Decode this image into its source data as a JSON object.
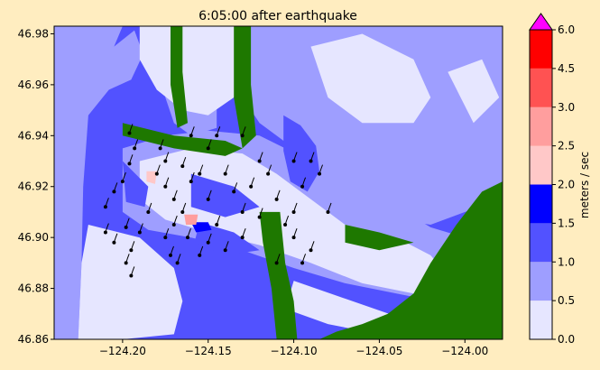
{
  "chart_data": {
    "type": "heatmap",
    "title": "6:05:00 after earthquake",
    "xlabel": "",
    "ylabel": "",
    "xlim": [
      -124.24,
      -123.978
    ],
    "ylim": [
      46.86,
      46.983
    ],
    "x_ticks": [
      -124.2,
      -124.15,
      -124.1,
      -124.05,
      -124.0
    ],
    "x_tick_labels": [
      "−124.20",
      "−124.15",
      "−124.10",
      "−124.05",
      "−124.00"
    ],
    "y_ticks": [
      46.86,
      46.88,
      46.9,
      46.92,
      46.94,
      46.96,
      46.98
    ],
    "y_tick_labels": [
      "46.86",
      "46.88",
      "46.90",
      "46.92",
      "46.94",
      "46.96",
      "46.98"
    ],
    "colorbar": {
      "label": "meters / sec",
      "ticks": [
        0.0,
        0.5,
        1.0,
        1.5,
        2.0,
        2.5,
        3.0,
        4.5,
        6.0
      ],
      "tick_labels": [
        "0.0",
        "0.5",
        "1.0",
        "1.5",
        "2.0",
        "2.5",
        "3.0",
        "4.5",
        "6.0"
      ],
      "bins": [
        {
          "from": 0.0,
          "to": 0.5,
          "color": "#E6E6FF"
        },
        {
          "from": 0.5,
          "to": 1.0,
          "color": "#9E9EFF"
        },
        {
          "from": 1.0,
          "to": 1.5,
          "color": "#5252FF"
        },
        {
          "from": 1.5,
          "to": 2.0,
          "color": "#0000FF"
        },
        {
          "from": 2.0,
          "to": 2.5,
          "color": "#FFC8C8"
        },
        {
          "from": 2.5,
          "to": 3.0,
          "color": "#FF9E9E"
        },
        {
          "from": 3.0,
          "to": 4.5,
          "color": "#FF5252"
        },
        {
          "from": 4.5,
          "to": 6.0,
          "color": "#FF0000"
        }
      ],
      "extend_max_color": "#FF00FF"
    },
    "land_color": "#1E7800",
    "speed_regions": [
      {
        "level": 0.75,
        "poly": [
          [
            -124.24,
            46.983
          ],
          [
            -124.194,
            46.983
          ],
          [
            -124.188,
            46.972
          ],
          [
            -124.195,
            46.962
          ],
          [
            -124.208,
            46.958
          ],
          [
            -124.22,
            46.948
          ],
          [
            -124.223,
            46.92
          ],
          [
            -124.224,
            46.89
          ],
          [
            -124.226,
            46.86
          ],
          [
            -124.24,
            46.86
          ]
        ]
      },
      {
        "level": 0.75,
        "poly": [
          [
            -124.145,
            46.983
          ],
          [
            -124.178,
            46.983
          ],
          [
            -124.175,
            46.955
          ],
          [
            -124.17,
            46.945
          ],
          [
            -124.16,
            46.94
          ],
          [
            -124.145,
            46.943
          ]
        ]
      },
      {
        "level": 0.75,
        "poly": [
          [
            -124.128,
            46.983
          ],
          [
            -123.978,
            46.983
          ],
          [
            -123.978,
            46.915
          ],
          [
            -124.0,
            46.91
          ],
          [
            -124.02,
            46.905
          ],
          [
            -124.05,
            46.908
          ],
          [
            -124.08,
            46.925
          ],
          [
            -124.1,
            46.935
          ],
          [
            -124.12,
            46.945
          ],
          [
            -124.13,
            46.955
          ]
        ]
      },
      {
        "level": 0.25,
        "poly": [
          [
            -124.19,
            46.983
          ],
          [
            -124.13,
            46.983
          ],
          [
            -124.125,
            46.97
          ],
          [
            -124.135,
            46.955
          ],
          [
            -124.15,
            46.948
          ],
          [
            -124.165,
            46.95
          ],
          [
            -124.18,
            46.958
          ],
          [
            -124.19,
            46.97
          ]
        ]
      },
      {
        "level": 0.25,
        "poly": [
          [
            -124.09,
            46.975
          ],
          [
            -124.06,
            46.98
          ],
          [
            -124.03,
            46.97
          ],
          [
            -124.02,
            46.955
          ],
          [
            -124.03,
            46.945
          ],
          [
            -124.06,
            46.945
          ],
          [
            -124.08,
            46.955
          ]
        ]
      },
      {
        "level": 0.25,
        "poly": [
          [
            -124.01,
            46.965
          ],
          [
            -123.99,
            46.97
          ],
          [
            -123.98,
            46.955
          ],
          [
            -123.995,
            46.945
          ]
        ]
      },
      {
        "level": 0.75,
        "poly": [
          [
            -124.2,
            46.935
          ],
          [
            -124.175,
            46.94
          ],
          [
            -124.15,
            46.942
          ],
          [
            -124.12,
            46.94
          ],
          [
            -124.105,
            46.935
          ],
          [
            -124.09,
            46.93
          ],
          [
            -124.075,
            46.925
          ],
          [
            -124.06,
            46.918
          ],
          [
            -124.04,
            46.912
          ],
          [
            -124.02,
            46.904
          ],
          [
            -124.0,
            46.9
          ],
          [
            -123.978,
            46.898
          ],
          [
            -123.978,
            46.875
          ],
          [
            -124.01,
            46.874
          ],
          [
            -124.04,
            46.878
          ],
          [
            -124.07,
            46.882
          ],
          [
            -124.1,
            46.888
          ],
          [
            -124.13,
            46.895
          ],
          [
            -124.16,
            46.9
          ],
          [
            -124.185,
            46.903
          ],
          [
            -124.2,
            46.91
          ]
        ]
      },
      {
        "level": 0.25,
        "poly": [
          [
            -124.19,
            46.93
          ],
          [
            -124.16,
            46.935
          ],
          [
            -124.13,
            46.933
          ],
          [
            -124.11,
            46.925
          ],
          [
            -124.09,
            46.915
          ],
          [
            -124.07,
            46.905
          ],
          [
            -124.04,
            46.9
          ],
          [
            -124.02,
            46.893
          ],
          [
            -124.01,
            46.885
          ],
          [
            -124.03,
            46.878
          ],
          [
            -124.06,
            46.882
          ],
          [
            -124.09,
            46.89
          ],
          [
            -124.12,
            46.897
          ],
          [
            -124.15,
            46.902
          ],
          [
            -124.175,
            46.907
          ],
          [
            -124.19,
            46.915
          ]
        ]
      },
      {
        "level": 0.25,
        "poly": [
          [
            -124.22,
            46.905
          ],
          [
            -124.19,
            46.9
          ],
          [
            -124.17,
            46.888
          ],
          [
            -124.165,
            46.875
          ],
          [
            -124.17,
            46.862
          ],
          [
            -124.2,
            46.86
          ],
          [
            -124.226,
            46.86
          ],
          [
            -124.224,
            46.89
          ]
        ]
      },
      {
        "level": 0.25,
        "poly": [
          [
            -124.1,
            46.883
          ],
          [
            -124.07,
            46.876
          ],
          [
            -124.04,
            46.869
          ],
          [
            -124.02,
            46.862
          ],
          [
            -124.05,
            46.862
          ],
          [
            -124.08,
            46.866
          ],
          [
            -124.105,
            46.872
          ]
        ]
      },
      {
        "level": 1.25,
        "poly": [
          [
            -124.205,
            46.975
          ],
          [
            -124.19,
            46.983
          ],
          [
            -124.2,
            46.983
          ]
        ]
      },
      {
        "level": 1.25,
        "poly": [
          [
            -124.106,
            46.948
          ],
          [
            -124.096,
            46.944
          ],
          [
            -124.087,
            46.936
          ],
          [
            -124.085,
            46.926
          ],
          [
            -124.092,
            46.918
          ],
          [
            -124.102,
            46.922
          ],
          [
            -124.106,
            46.934
          ]
        ]
      },
      {
        "level": 1.25,
        "poly": [
          [
            -124.16,
            46.925
          ],
          [
            -124.135,
            46.92
          ],
          [
            -124.12,
            46.912
          ],
          [
            -124.14,
            46.908
          ],
          [
            -124.16,
            46.912
          ]
        ]
      },
      {
        "level": 1.25,
        "poly": [
          [
            -124.2,
            46.93
          ],
          [
            -124.185,
            46.92
          ],
          [
            -124.187,
            46.912
          ],
          [
            -124.198,
            46.914
          ]
        ]
      },
      {
        "level": 1.25,
        "poly": [
          [
            -124.155,
            46.906
          ],
          [
            -124.135,
            46.902
          ],
          [
            -124.12,
            46.895
          ],
          [
            -124.14,
            46.893
          ],
          [
            -124.158,
            46.898
          ]
        ]
      },
      {
        "level": 1.75,
        "poly": [
          [
            -124.16,
            46.906
          ],
          [
            -124.15,
            46.906
          ],
          [
            -124.148,
            46.903
          ],
          [
            -124.157,
            46.902
          ]
        ]
      },
      {
        "level": 2.25,
        "poly": [
          [
            -124.186,
            46.926
          ],
          [
            -124.18,
            46.926
          ],
          [
            -124.181,
            46.921
          ],
          [
            -124.186,
            46.922
          ]
        ]
      },
      {
        "level": 2.75,
        "poly": [
          [
            -124.164,
            46.909
          ],
          [
            -124.156,
            46.909
          ],
          [
            -124.157,
            46.905
          ],
          [
            -124.163,
            46.905
          ]
        ]
      }
    ],
    "land_regions": [
      [
        [
          -124.135,
          46.983
        ],
        [
          -124.125,
          46.983
        ],
        [
          -124.125,
          46.96
        ],
        [
          -124.122,
          46.94
        ],
        [
          -124.13,
          46.935
        ],
        [
          -124.135,
          46.955
        ]
      ],
      [
        [
          -124.172,
          46.983
        ],
        [
          -124.165,
          46.983
        ],
        [
          -124.165,
          46.965
        ],
        [
          -124.162,
          46.945
        ],
        [
          -124.168,
          46.943
        ],
        [
          -124.172,
          46.96
        ]
      ],
      [
        [
          -124.2,
          46.945
        ],
        [
          -124.17,
          46.94
        ],
        [
          -124.14,
          46.938
        ],
        [
          -124.13,
          46.935
        ],
        [
          -124.14,
          46.932
        ],
        [
          -124.17,
          46.935
        ],
        [
          -124.2,
          46.94
        ]
      ],
      [
        [
          -124.12,
          46.91
        ],
        [
          -124.108,
          46.91
        ],
        [
          -124.105,
          46.89
        ],
        [
          -124.1,
          46.875
        ],
        [
          -124.098,
          46.86
        ],
        [
          -124.11,
          46.86
        ],
        [
          -124.113,
          46.88
        ],
        [
          -124.118,
          46.898
        ]
      ],
      [
        [
          -124.07,
          46.905
        ],
        [
          -124.05,
          46.902
        ],
        [
          -124.03,
          46.898
        ],
        [
          -124.05,
          46.895
        ],
        [
          -124.07,
          46.898
        ]
      ],
      [
        [
          -123.978,
          46.922
        ],
        [
          -123.99,
          46.918
        ],
        [
          -124.005,
          46.905
        ],
        [
          -124.02,
          46.89
        ],
        [
          -124.03,
          46.878
        ],
        [
          -124.045,
          46.87
        ],
        [
          -124.06,
          46.866
        ],
        [
          -124.075,
          46.863
        ],
        [
          -124.085,
          46.86
        ],
        [
          -123.978,
          46.86
        ]
      ]
    ],
    "gauges": [
      {
        "x": -124.196,
        "y": 46.941
      },
      {
        "x": -124.193,
        "y": 46.935
      },
      {
        "x": -124.196,
        "y": 46.929
      },
      {
        "x": -124.2,
        "y": 46.922
      },
      {
        "x": -124.205,
        "y": 46.918
      },
      {
        "x": -124.21,
        "y": 46.912
      },
      {
        "x": -124.21,
        "y": 46.902
      },
      {
        "x": -124.205,
        "y": 46.898
      },
      {
        "x": -124.198,
        "y": 46.904
      },
      {
        "x": -124.195,
        "y": 46.895
      },
      {
        "x": -124.198,
        "y": 46.89
      },
      {
        "x": -124.195,
        "y": 46.885
      },
      {
        "x": -124.19,
        "y": 46.902
      },
      {
        "x": -124.185,
        "y": 46.91
      },
      {
        "x": -124.18,
        "y": 46.925
      },
      {
        "x": -124.178,
        "y": 46.935
      },
      {
        "x": -124.175,
        "y": 46.92
      },
      {
        "x": -124.17,
        "y": 46.915
      },
      {
        "x": -124.165,
        "y": 46.928
      },
      {
        "x": -124.16,
        "y": 46.922
      },
      {
        "x": -124.165,
        "y": 46.91
      },
      {
        "x": -124.17,
        "y": 46.905
      },
      {
        "x": -124.175,
        "y": 46.9
      },
      {
        "x": -124.172,
        "y": 46.893
      },
      {
        "x": -124.168,
        "y": 46.89
      },
      {
        "x": -124.162,
        "y": 46.9
      },
      {
        "x": -124.155,
        "y": 46.893
      },
      {
        "x": -124.15,
        "y": 46.898
      },
      {
        "x": -124.145,
        "y": 46.905
      },
      {
        "x": -124.15,
        "y": 46.915
      },
      {
        "x": -124.155,
        "y": 46.925
      },
      {
        "x": -124.15,
        "y": 46.935
      },
      {
        "x": -124.145,
        "y": 46.94
      },
      {
        "x": -124.14,
        "y": 46.925
      },
      {
        "x": -124.135,
        "y": 46.918
      },
      {
        "x": -124.13,
        "y": 46.91
      },
      {
        "x": -124.125,
        "y": 46.92
      },
      {
        "x": -124.12,
        "y": 46.93
      },
      {
        "x": -124.115,
        "y": 46.925
      },
      {
        "x": -124.11,
        "y": 46.915
      },
      {
        "x": -124.105,
        "y": 46.905
      },
      {
        "x": -124.1,
        "y": 46.91
      },
      {
        "x": -124.095,
        "y": 46.92
      },
      {
        "x": -124.09,
        "y": 46.93
      },
      {
        "x": -124.085,
        "y": 46.925
      },
      {
        "x": -124.08,
        "y": 46.91
      },
      {
        "x": -124.1,
        "y": 46.9
      },
      {
        "x": -124.09,
        "y": 46.895
      },
      {
        "x": -124.095,
        "y": 46.89
      },
      {
        "x": -124.11,
        "y": 46.89
      },
      {
        "x": -124.13,
        "y": 46.9
      },
      {
        "x": -124.14,
        "y": 46.895
      },
      {
        "x": -124.13,
        "y": 46.94
      },
      {
        "x": -124.16,
        "y": 46.94
      },
      {
        "x": -124.1,
        "y": 46.93
      },
      {
        "x": -124.12,
        "y": 46.908
      },
      {
        "x": -124.175,
        "y": 46.93
      }
    ]
  }
}
